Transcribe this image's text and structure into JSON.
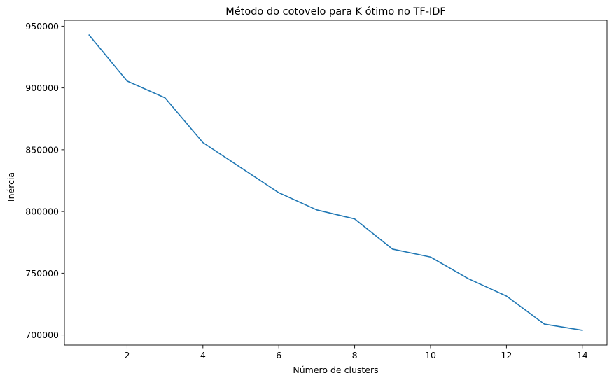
{
  "chart_data": {
    "type": "line",
    "title": "Método do cotovelo para K ótimo no TF-IDF",
    "xlabel": "Número de clusters",
    "ylabel": "Inércia",
    "x": [
      1,
      2,
      3,
      4,
      5,
      6,
      7,
      8,
      9,
      10,
      11,
      12,
      13,
      14
    ],
    "series": [
      {
        "values": [
          942800,
          905600,
          892000,
          855800,
          835500,
          815200,
          801300,
          794000,
          769500,
          763100,
          745500,
          731500,
          708800,
          703800
        ],
        "color": "#1f77b4"
      }
    ],
    "xticks": [
      2,
      4,
      6,
      8,
      10,
      12,
      14
    ],
    "yticks": [
      700000,
      750000,
      800000,
      850000,
      900000,
      950000
    ],
    "xtick_labels": [
      "2",
      "4",
      "6",
      "8",
      "10",
      "12",
      "14"
    ],
    "ytick_labels": [
      "700000",
      "750000",
      "800000",
      "850000",
      "900000",
      "950000"
    ],
    "xlim": [
      0.35,
      14.65
    ],
    "ylim": [
      691847,
      954752
    ],
    "grid": false,
    "legend": "none"
  }
}
